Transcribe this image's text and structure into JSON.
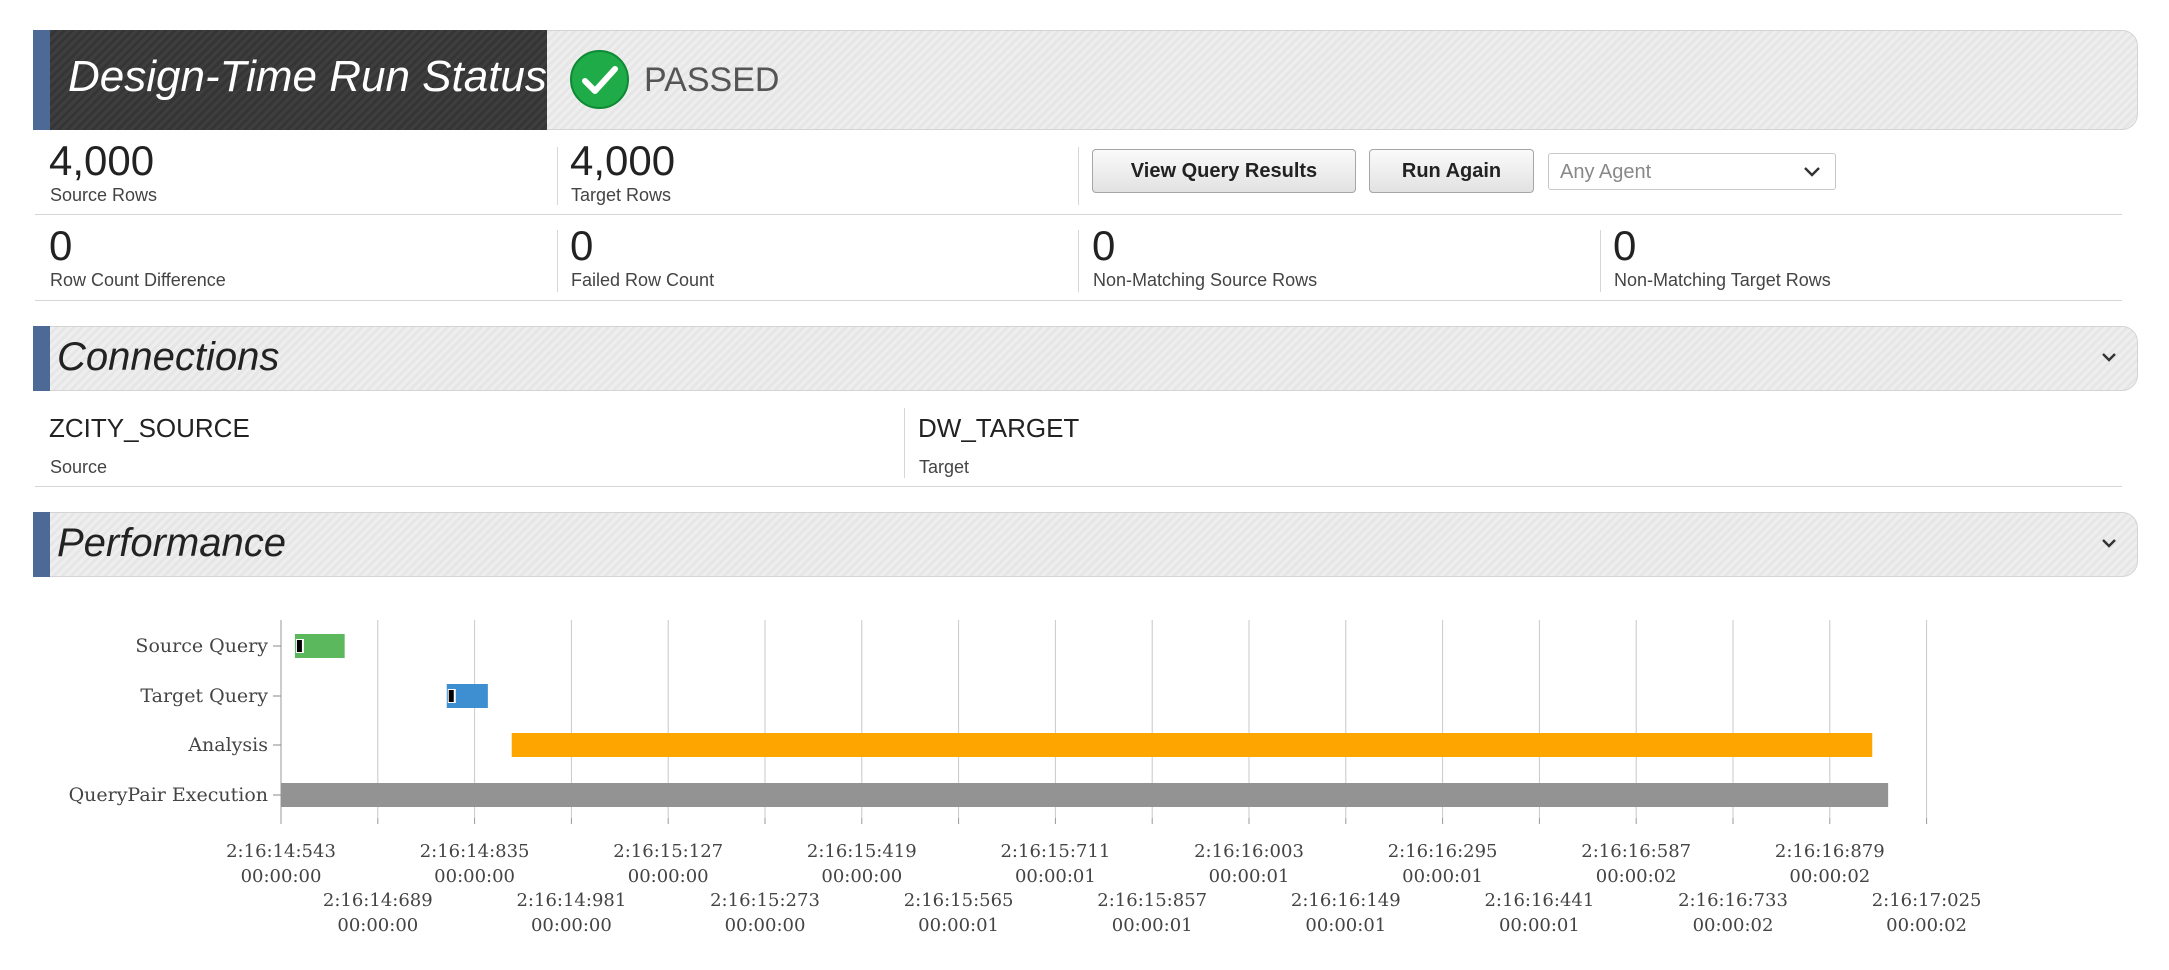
{
  "status": {
    "title": "Design-Time Run Status",
    "result": "PASSED",
    "colors": {
      "accent": "#4d6a96",
      "pass": "#1eab48"
    }
  },
  "stats_top": [
    {
      "value": "4,000",
      "label": "Source Rows"
    },
    {
      "value": "4,000",
      "label": "Target Rows"
    }
  ],
  "stats_bottom": [
    {
      "value": "0",
      "label": "Row Count Difference"
    },
    {
      "value": "0",
      "label": "Failed Row Count"
    },
    {
      "value": "0",
      "label": "Non-Matching Source Rows"
    },
    {
      "value": "0",
      "label": "Non-Matching Target Rows"
    }
  ],
  "actions": {
    "view_results": "View Query Results",
    "run_again": "Run Again",
    "agent": "Any Agent"
  },
  "connections": {
    "title": "Connections",
    "source_name": "ZCITY_SOURCE",
    "source_label": "Source",
    "target_name": "DW_TARGET",
    "target_label": "Target"
  },
  "performance": {
    "title": "Performance"
  },
  "chart_data": {
    "type": "gantt",
    "x_unit": "clock time (m:ss:ms) and elapsed (hh:mm:ss)",
    "xlim": [
      "2:16:14:543",
      "2:16:17:171"
    ],
    "ticks": [
      {
        "time": "2:16:14:543",
        "elapsed": "00:00:00"
      },
      {
        "time": "2:16:14:689",
        "elapsed": "00:00:00"
      },
      {
        "time": "2:16:14:835",
        "elapsed": "00:00:00"
      },
      {
        "time": "2:16:14:981",
        "elapsed": "00:00:00"
      },
      {
        "time": "2:16:15:127",
        "elapsed": "00:00:00"
      },
      {
        "time": "2:16:15:273",
        "elapsed": "00:00:00"
      },
      {
        "time": "2:16:15:419",
        "elapsed": "00:00:00"
      },
      {
        "time": "2:16:15:565",
        "elapsed": "00:00:01"
      },
      {
        "time": "2:16:15:711",
        "elapsed": "00:00:01"
      },
      {
        "time": "2:16:15:857",
        "elapsed": "00:00:01"
      },
      {
        "time": "2:16:16:003",
        "elapsed": "00:00:01"
      },
      {
        "time": "2:16:16:149",
        "elapsed": "00:00:01"
      },
      {
        "time": "2:16:16:295",
        "elapsed": "00:00:01"
      },
      {
        "time": "2:16:16:441",
        "elapsed": "00:00:01"
      },
      {
        "time": "2:16:16:587",
        "elapsed": "00:00:02"
      },
      {
        "time": "2:16:16:733",
        "elapsed": "00:00:02"
      },
      {
        "time": "2:16:16:879",
        "elapsed": "00:00:02"
      },
      {
        "time": "2:16:17:025",
        "elapsed": "00:00:02"
      }
    ],
    "tasks": [
      {
        "name": "Source Query",
        "start_ms": 21,
        "end_ms": 96,
        "color": "#5cb85c",
        "marker": true
      },
      {
        "name": "Target Query",
        "start_ms": 250,
        "end_ms": 312,
        "color": "#3d8fd1",
        "marker": true
      },
      {
        "name": "Analysis",
        "start_ms": 348,
        "end_ms": 2400,
        "color": "#ffa500",
        "marker": false
      },
      {
        "name": "QueryPair Execution",
        "start_ms": 0,
        "end_ms": 2424,
        "color": "#939393",
        "marker": false
      }
    ]
  }
}
